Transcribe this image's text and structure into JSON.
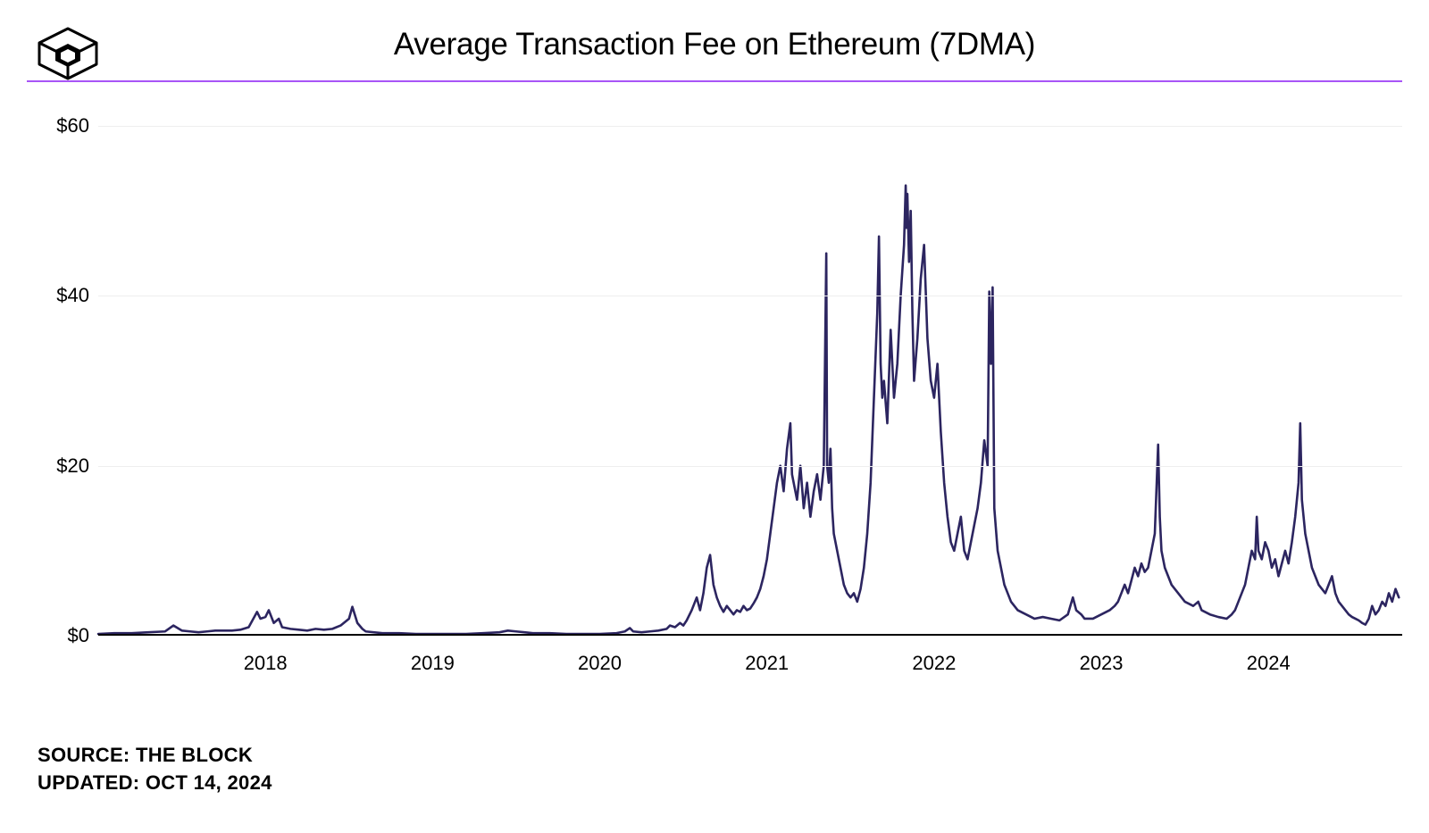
{
  "header": {
    "title": "Average Transaction Fee on Ethereum (7DMA)",
    "divider_color": "#a855f7"
  },
  "footer": {
    "source_label": "SOURCE:",
    "source_value": "THE BLOCK",
    "updated_label": "UPDATED:",
    "updated_value": "OCT 14, 2024"
  },
  "chart": {
    "type": "line",
    "line_color": "#2c2560",
    "line_width": 2.6,
    "background_color": "#ffffff",
    "grid_color": "#eeeeee",
    "axis_color": "#000000",
    "y_axis": {
      "min": 0,
      "max": 62,
      "ticks": [
        0,
        20,
        40,
        60
      ],
      "tick_labels": [
        "$0",
        "$20",
        "$40",
        "$60"
      ],
      "label_fontsize": 22,
      "label_color": "#000000"
    },
    "x_axis": {
      "min": 2017.0,
      "max": 2024.8,
      "ticks": [
        2018,
        2019,
        2020,
        2021,
        2022,
        2023,
        2024
      ],
      "tick_labels": [
        "2018",
        "2019",
        "2020",
        "2021",
        "2022",
        "2023",
        "2024"
      ],
      "label_fontsize": 22,
      "label_color": "#000000"
    },
    "series": [
      {
        "name": "avg_fee_usd",
        "points": [
          [
            2017.0,
            0.2
          ],
          [
            2017.1,
            0.3
          ],
          [
            2017.2,
            0.3
          ],
          [
            2017.3,
            0.4
          ],
          [
            2017.4,
            0.5
          ],
          [
            2017.45,
            1.2
          ],
          [
            2017.5,
            0.6
          ],
          [
            2017.55,
            0.5
          ],
          [
            2017.6,
            0.4
          ],
          [
            2017.65,
            0.5
          ],
          [
            2017.7,
            0.6
          ],
          [
            2017.75,
            0.6
          ],
          [
            2017.8,
            0.6
          ],
          [
            2017.85,
            0.7
          ],
          [
            2017.9,
            1.0
          ],
          [
            2017.95,
            2.8
          ],
          [
            2017.97,
            2.0
          ],
          [
            2018.0,
            2.2
          ],
          [
            2018.02,
            3.0
          ],
          [
            2018.05,
            1.5
          ],
          [
            2018.08,
            2.0
          ],
          [
            2018.1,
            1.0
          ],
          [
            2018.15,
            0.8
          ],
          [
            2018.2,
            0.7
          ],
          [
            2018.25,
            0.6
          ],
          [
            2018.3,
            0.8
          ],
          [
            2018.35,
            0.7
          ],
          [
            2018.4,
            0.8
          ],
          [
            2018.45,
            1.2
          ],
          [
            2018.5,
            2.0
          ],
          [
            2018.52,
            3.4
          ],
          [
            2018.55,
            1.5
          ],
          [
            2018.58,
            0.8
          ],
          [
            2018.6,
            0.5
          ],
          [
            2018.7,
            0.3
          ],
          [
            2018.8,
            0.3
          ],
          [
            2018.9,
            0.2
          ],
          [
            2019.0,
            0.2
          ],
          [
            2019.1,
            0.2
          ],
          [
            2019.2,
            0.2
          ],
          [
            2019.3,
            0.3
          ],
          [
            2019.4,
            0.4
          ],
          [
            2019.45,
            0.6
          ],
          [
            2019.5,
            0.5
          ],
          [
            2019.55,
            0.4
          ],
          [
            2019.6,
            0.3
          ],
          [
            2019.7,
            0.3
          ],
          [
            2019.8,
            0.2
          ],
          [
            2019.9,
            0.2
          ],
          [
            2020.0,
            0.2
          ],
          [
            2020.1,
            0.3
          ],
          [
            2020.15,
            0.5
          ],
          [
            2020.18,
            0.9
          ],
          [
            2020.2,
            0.5
          ],
          [
            2020.25,
            0.4
          ],
          [
            2020.3,
            0.5
          ],
          [
            2020.35,
            0.6
          ],
          [
            2020.4,
            0.8
          ],
          [
            2020.42,
            1.2
          ],
          [
            2020.45,
            1.0
          ],
          [
            2020.48,
            1.5
          ],
          [
            2020.5,
            1.2
          ],
          [
            2020.52,
            1.8
          ],
          [
            2020.55,
            3.0
          ],
          [
            2020.58,
            4.5
          ],
          [
            2020.6,
            3.0
          ],
          [
            2020.62,
            5.0
          ],
          [
            2020.64,
            8.0
          ],
          [
            2020.66,
            9.5
          ],
          [
            2020.68,
            6.0
          ],
          [
            2020.7,
            4.5
          ],
          [
            2020.72,
            3.5
          ],
          [
            2020.74,
            2.8
          ],
          [
            2020.76,
            3.5
          ],
          [
            2020.78,
            3.0
          ],
          [
            2020.8,
            2.5
          ],
          [
            2020.82,
            3.0
          ],
          [
            2020.84,
            2.8
          ],
          [
            2020.86,
            3.5
          ],
          [
            2020.88,
            3.0
          ],
          [
            2020.9,
            3.2
          ],
          [
            2020.92,
            3.8
          ],
          [
            2020.94,
            4.5
          ],
          [
            2020.96,
            5.5
          ],
          [
            2020.98,
            7.0
          ],
          [
            2021.0,
            9.0
          ],
          [
            2021.02,
            12.0
          ],
          [
            2021.04,
            15.0
          ],
          [
            2021.06,
            18.0
          ],
          [
            2021.08,
            20.0
          ],
          [
            2021.1,
            17.0
          ],
          [
            2021.12,
            22.0
          ],
          [
            2021.14,
            25.0
          ],
          [
            2021.15,
            19.0
          ],
          [
            2021.16,
            18.0
          ],
          [
            2021.18,
            16.0
          ],
          [
            2021.2,
            20.0
          ],
          [
            2021.22,
            15.0
          ],
          [
            2021.24,
            18.0
          ],
          [
            2021.26,
            14.0
          ],
          [
            2021.28,
            17.0
          ],
          [
            2021.3,
            19.0
          ],
          [
            2021.32,
            16.0
          ],
          [
            2021.34,
            20.0
          ],
          [
            2021.355,
            45.0
          ],
          [
            2021.36,
            20.0
          ],
          [
            2021.37,
            18.0
          ],
          [
            2021.38,
            22.0
          ],
          [
            2021.39,
            15.0
          ],
          [
            2021.4,
            12.0
          ],
          [
            2021.42,
            10.0
          ],
          [
            2021.44,
            8.0
          ],
          [
            2021.46,
            6.0
          ],
          [
            2021.48,
            5.0
          ],
          [
            2021.5,
            4.5
          ],
          [
            2021.52,
            5.0
          ],
          [
            2021.54,
            4.0
          ],
          [
            2021.56,
            5.5
          ],
          [
            2021.58,
            8.0
          ],
          [
            2021.6,
            12.0
          ],
          [
            2021.62,
            18.0
          ],
          [
            2021.64,
            28.0
          ],
          [
            2021.66,
            38.0
          ],
          [
            2021.67,
            47.0
          ],
          [
            2021.68,
            32.0
          ],
          [
            2021.69,
            28.0
          ],
          [
            2021.7,
            30.0
          ],
          [
            2021.72,
            25.0
          ],
          [
            2021.74,
            36.0
          ],
          [
            2021.76,
            28.0
          ],
          [
            2021.78,
            32.0
          ],
          [
            2021.8,
            40.0
          ],
          [
            2021.82,
            46.0
          ],
          [
            2021.83,
            53.0
          ],
          [
            2021.835,
            48.0
          ],
          [
            2021.84,
            52.0
          ],
          [
            2021.85,
            44.0
          ],
          [
            2021.86,
            50.0
          ],
          [
            2021.87,
            38.0
          ],
          [
            2021.88,
            30.0
          ],
          [
            2021.9,
            35.0
          ],
          [
            2021.92,
            42.0
          ],
          [
            2021.94,
            46.0
          ],
          [
            2021.96,
            35.0
          ],
          [
            2021.98,
            30.0
          ],
          [
            2022.0,
            28.0
          ],
          [
            2022.02,
            32.0
          ],
          [
            2022.04,
            24.0
          ],
          [
            2022.06,
            18.0
          ],
          [
            2022.08,
            14.0
          ],
          [
            2022.1,
            11.0
          ],
          [
            2022.12,
            10.0
          ],
          [
            2022.14,
            12.0
          ],
          [
            2022.16,
            14.0
          ],
          [
            2022.18,
            10.0
          ],
          [
            2022.2,
            9.0
          ],
          [
            2022.22,
            11.0
          ],
          [
            2022.24,
            13.0
          ],
          [
            2022.26,
            15.0
          ],
          [
            2022.28,
            18.0
          ],
          [
            2022.3,
            23.0
          ],
          [
            2022.32,
            20.0
          ],
          [
            2022.33,
            40.5
          ],
          [
            2022.34,
            32.0
          ],
          [
            2022.35,
            41.0
          ],
          [
            2022.36,
            15.0
          ],
          [
            2022.38,
            10.0
          ],
          [
            2022.4,
            8.0
          ],
          [
            2022.42,
            6.0
          ],
          [
            2022.44,
            5.0
          ],
          [
            2022.46,
            4.0
          ],
          [
            2022.48,
            3.5
          ],
          [
            2022.5,
            3.0
          ],
          [
            2022.55,
            2.5
          ],
          [
            2022.6,
            2.0
          ],
          [
            2022.65,
            2.2
          ],
          [
            2022.7,
            2.0
          ],
          [
            2022.75,
            1.8
          ],
          [
            2022.8,
            2.5
          ],
          [
            2022.83,
            4.5
          ],
          [
            2022.85,
            3.0
          ],
          [
            2022.88,
            2.5
          ],
          [
            2022.9,
            2.0
          ],
          [
            2022.95,
            2.0
          ],
          [
            2023.0,
            2.5
          ],
          [
            2023.05,
            3.0
          ],
          [
            2023.08,
            3.5
          ],
          [
            2023.1,
            4.0
          ],
          [
            2023.12,
            5.0
          ],
          [
            2023.14,
            6.0
          ],
          [
            2023.16,
            5.0
          ],
          [
            2023.18,
            6.5
          ],
          [
            2023.2,
            8.0
          ],
          [
            2023.22,
            7.0
          ],
          [
            2023.24,
            8.5
          ],
          [
            2023.26,
            7.5
          ],
          [
            2023.28,
            8.0
          ],
          [
            2023.3,
            10.0
          ],
          [
            2023.32,
            12.0
          ],
          [
            2023.34,
            22.5
          ],
          [
            2023.35,
            14.0
          ],
          [
            2023.36,
            10.0
          ],
          [
            2023.38,
            8.0
          ],
          [
            2023.4,
            7.0
          ],
          [
            2023.42,
            6.0
          ],
          [
            2023.44,
            5.5
          ],
          [
            2023.46,
            5.0
          ],
          [
            2023.48,
            4.5
          ],
          [
            2023.5,
            4.0
          ],
          [
            2023.55,
            3.5
          ],
          [
            2023.58,
            4.0
          ],
          [
            2023.6,
            3.0
          ],
          [
            2023.65,
            2.5
          ],
          [
            2023.7,
            2.2
          ],
          [
            2023.75,
            2.0
          ],
          [
            2023.78,
            2.5
          ],
          [
            2023.8,
            3.0
          ],
          [
            2023.82,
            4.0
          ],
          [
            2023.84,
            5.0
          ],
          [
            2023.86,
            6.0
          ],
          [
            2023.88,
            8.0
          ],
          [
            2023.9,
            10.0
          ],
          [
            2023.92,
            9.0
          ],
          [
            2023.93,
            14.0
          ],
          [
            2023.94,
            10.0
          ],
          [
            2023.96,
            9.0
          ],
          [
            2023.98,
            11.0
          ],
          [
            2024.0,
            10.0
          ],
          [
            2024.02,
            8.0
          ],
          [
            2024.04,
            9.0
          ],
          [
            2024.06,
            7.0
          ],
          [
            2024.08,
            8.5
          ],
          [
            2024.1,
            10.0
          ],
          [
            2024.12,
            8.5
          ],
          [
            2024.14,
            11.0
          ],
          [
            2024.16,
            14.0
          ],
          [
            2024.18,
            18.0
          ],
          [
            2024.19,
            25.0
          ],
          [
            2024.2,
            16.0
          ],
          [
            2024.21,
            14.0
          ],
          [
            2024.22,
            12.0
          ],
          [
            2024.24,
            10.0
          ],
          [
            2024.26,
            8.0
          ],
          [
            2024.28,
            7.0
          ],
          [
            2024.3,
            6.0
          ],
          [
            2024.32,
            5.5
          ],
          [
            2024.34,
            5.0
          ],
          [
            2024.36,
            6.0
          ],
          [
            2024.38,
            7.0
          ],
          [
            2024.4,
            5.0
          ],
          [
            2024.42,
            4.0
          ],
          [
            2024.44,
            3.5
          ],
          [
            2024.46,
            3.0
          ],
          [
            2024.48,
            2.5
          ],
          [
            2024.5,
            2.2
          ],
          [
            2024.52,
            2.0
          ],
          [
            2024.54,
            1.8
          ],
          [
            2024.56,
            1.5
          ],
          [
            2024.58,
            1.3
          ],
          [
            2024.6,
            2.0
          ],
          [
            2024.62,
            3.5
          ],
          [
            2024.64,
            2.5
          ],
          [
            2024.66,
            3.0
          ],
          [
            2024.68,
            4.0
          ],
          [
            2024.7,
            3.5
          ],
          [
            2024.72,
            5.0
          ],
          [
            2024.74,
            4.0
          ],
          [
            2024.76,
            5.5
          ],
          [
            2024.78,
            4.5
          ]
        ]
      }
    ]
  }
}
